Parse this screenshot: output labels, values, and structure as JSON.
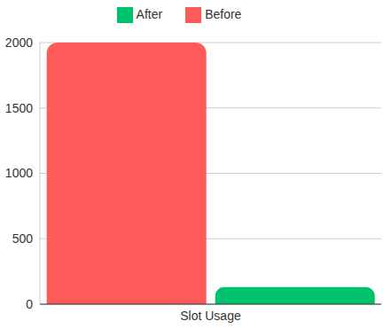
{
  "chart_data": {
    "type": "bar",
    "categories": [
      "Slot Usage"
    ],
    "series": [
      {
        "name": "Before",
        "color": "#ff5a5a",
        "values": [
          2000
        ]
      },
      {
        "name": "After",
        "color": "#00c16c",
        "values": [
          130
        ]
      }
    ],
    "ylim": [
      0,
      2000
    ],
    "yticks": [
      0,
      500,
      1000,
      1500,
      2000
    ],
    "grid": true,
    "legend": "top"
  }
}
